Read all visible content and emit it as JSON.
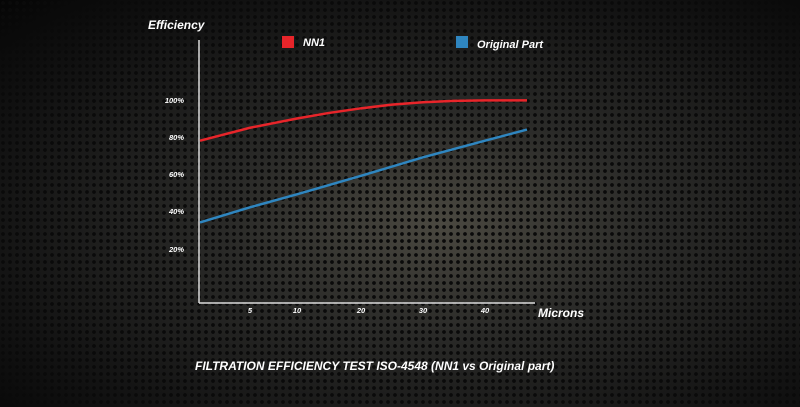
{
  "chart_data": {
    "type": "line",
    "title": "FILTRATION EFFICIENCY TEST ISO-4548 (NN1 vs Original part)",
    "xlabel": "Microns",
    "ylabel": "Efficiency",
    "x_ticks": [
      "5",
      "10",
      "20",
      "30",
      "40"
    ],
    "y_ticks": [
      "20%",
      "40%",
      "60%",
      "80%",
      "100%"
    ],
    "xlim": [
      0,
      47
    ],
    "ylim": [
      0,
      100
    ],
    "grid": false,
    "legend": "top",
    "series": [
      {
        "name": "NN1",
        "color": "#e8252a",
        "x": [
          0,
          5,
          10,
          15,
          20,
          25,
          30,
          35,
          40,
          47
        ],
        "y": [
          78,
          85,
          90,
          93,
          95.5,
          97.5,
          98.8,
          99.5,
          99.8,
          99.8
        ]
      },
      {
        "name": "Original Part",
        "color": "#2f86c0",
        "x": [
          0,
          5,
          10,
          20,
          30,
          40,
          47
        ],
        "y": [
          34,
          42,
          49,
          59,
          69,
          78,
          84
        ]
      }
    ]
  }
}
